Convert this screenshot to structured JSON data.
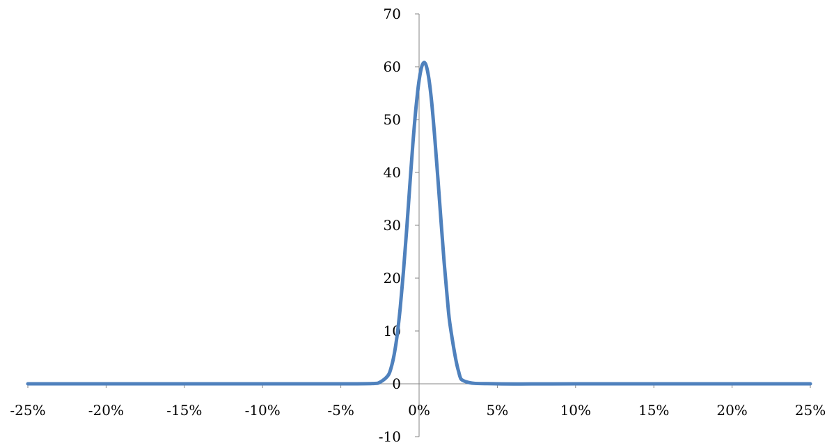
{
  "chart_data": {
    "type": "line",
    "title": "",
    "xlabel": "",
    "ylabel": "",
    "xlim": [
      -0.25,
      0.25
    ],
    "ylim": [
      -10,
      70
    ],
    "x_ticks": [
      -0.25,
      -0.2,
      -0.15,
      -0.1,
      -0.05,
      0,
      0.05,
      0.1,
      0.15,
      0.2,
      0.25
    ],
    "x_tick_labels": [
      "-25%",
      "-20%",
      "-15%",
      "-10%",
      "-5%",
      "0%",
      "5%",
      "10%",
      "15%",
      "20%",
      "25%"
    ],
    "y_ticks": [
      -10,
      0,
      10,
      20,
      30,
      40,
      50,
      60,
      70
    ],
    "y_tick_labels": [
      "-10",
      "0",
      "10",
      "20",
      "30",
      "40",
      "50",
      "60",
      "70"
    ],
    "grid": false,
    "legend": "none",
    "series": [
      {
        "color": "#4f81bd",
        "x": [
          -0.25,
          -0.2,
          -0.15,
          -0.1,
          -0.05,
          -0.03,
          -0.025,
          -0.02,
          -0.018,
          -0.016,
          -0.014,
          -0.012,
          -0.01,
          -0.008,
          -0.006,
          -0.004,
          -0.002,
          0,
          0.002,
          0.004,
          0.006,
          0.008,
          0.01,
          0.012,
          0.014,
          0.016,
          0.018,
          0.02,
          0.025,
          0.03,
          0.05,
          0.1,
          0.15,
          0.2,
          0.25
        ],
        "y": [
          0,
          0,
          0,
          0,
          0,
          0.05,
          0.3,
          1.5,
          2.9,
          5.4,
          9.2,
          14.5,
          21.2,
          28.9,
          37.2,
          45.3,
          52.2,
          57.4,
          60.3,
          60.6,
          58.2,
          53.4,
          46.6,
          38.9,
          30.8,
          23.0,
          16.2,
          10.7,
          2.6,
          0.4,
          0,
          0,
          0,
          0,
          0
        ]
      }
    ]
  }
}
